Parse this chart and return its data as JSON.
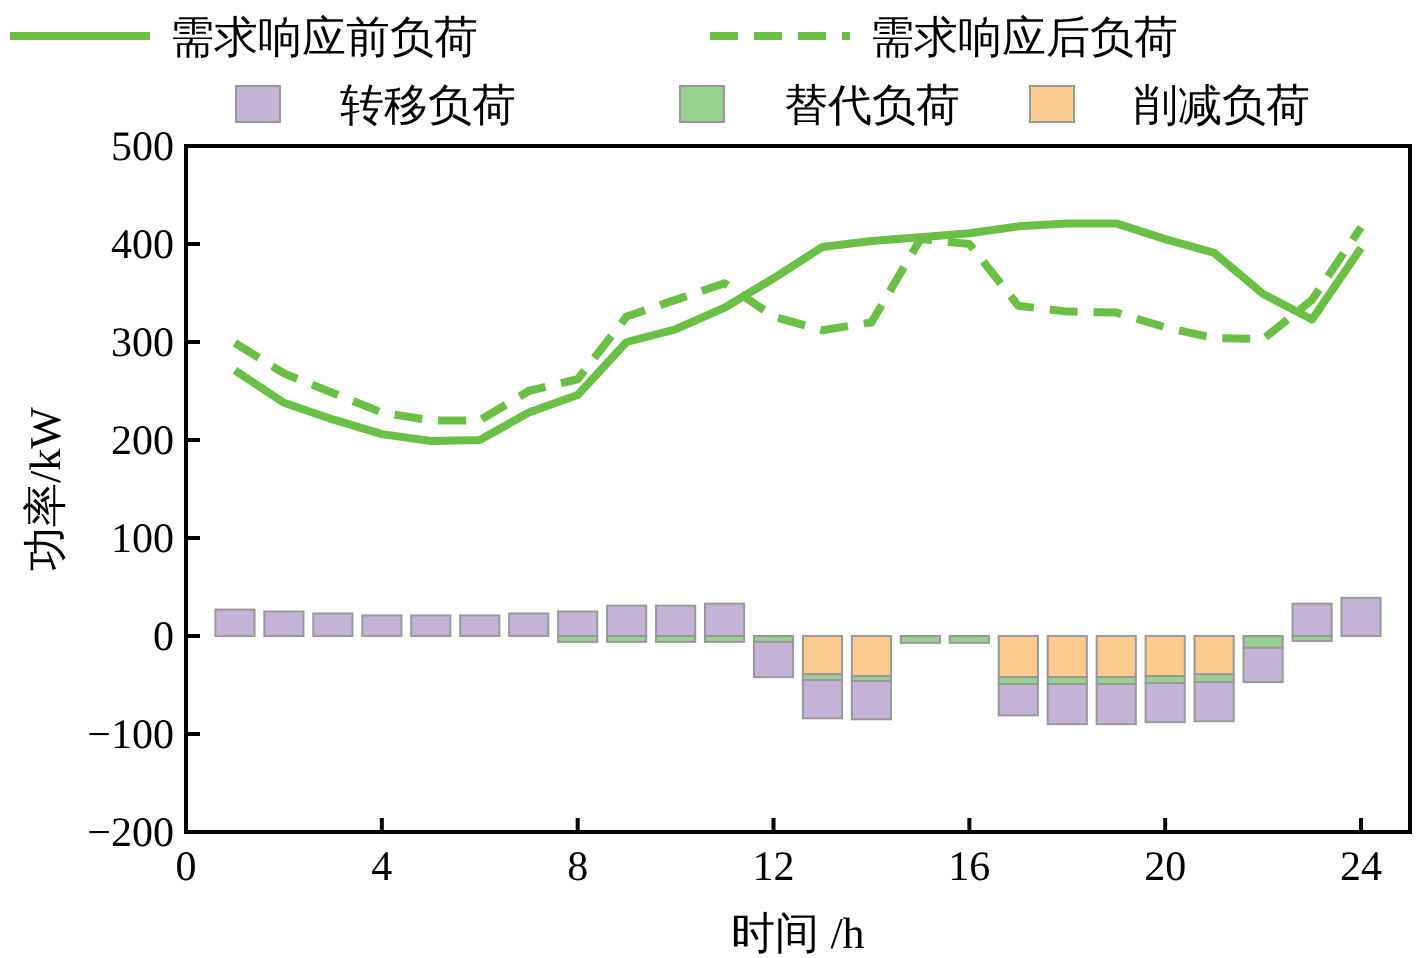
{
  "chart_data": {
    "type": "bar",
    "stacked": true,
    "xlabel": "时间 /h",
    "ylabel": "功率/kW",
    "x": [
      1,
      2,
      3,
      4,
      5,
      6,
      7,
      8,
      9,
      10,
      11,
      12,
      13,
      14,
      15,
      16,
      17,
      18,
      19,
      20,
      21,
      22,
      23,
      24
    ],
    "xlim": [
      0,
      25
    ],
    "xticks": [
      0,
      4,
      8,
      12,
      16,
      20,
      24
    ],
    "ylim": [
      -200,
      500
    ],
    "yticks": [
      -200,
      -100,
      0,
      100,
      200,
      300,
      400,
      500
    ],
    "legend": "top",
    "grid": false,
    "series": [
      {
        "name": "需求响应前负荷",
        "type": "line",
        "line_style": "solid",
        "color": "#6abf45",
        "values": [
          271,
          238,
          221,
          206,
          199,
          200,
          228,
          246,
          300,
          313,
          335,
          365,
          397,
          403,
          407,
          411,
          418,
          421,
          421,
          405,
          391,
          349,
          323,
          396
        ]
      },
      {
        "name": "需求响应后负荷",
        "type": "line",
        "line_style": "dashed",
        "color": "#6abf45",
        "values": [
          299,
          268,
          248,
          228,
          220,
          220,
          250,
          262,
          326,
          343,
          360,
          326,
          312,
          320,
          405,
          400,
          337,
          331,
          330,
          315,
          304,
          303,
          343,
          417
        ]
      },
      {
        "name": "削减负荷",
        "color": "#fdcb8d",
        "values": [
          0,
          0,
          0,
          0,
          0,
          0,
          0,
          0,
          0,
          0,
          0,
          0,
          -39,
          -41,
          0,
          0,
          -42,
          -42,
          -42,
          -41,
          -39,
          0,
          0,
          0
        ]
      },
      {
        "name": "替代负荷",
        "color": "#98d08f",
        "values": [
          0,
          0,
          0,
          0,
          0,
          0,
          0,
          -6,
          -6,
          -6,
          -6,
          -6,
          -6,
          -5,
          -7,
          -7,
          -7,
          -7,
          -7,
          -7,
          -8,
          -12,
          -5,
          0
        ]
      },
      {
        "name": "转移负荷",
        "color": "#c5b3d7",
        "values": [
          27,
          25,
          23,
          21,
          21,
          21,
          23,
          25,
          31,
          31,
          33,
          -36,
          -39,
          -39,
          0,
          0,
          -32,
          -41,
          -41,
          -40,
          -40,
          -35,
          33,
          39
        ]
      }
    ]
  }
}
